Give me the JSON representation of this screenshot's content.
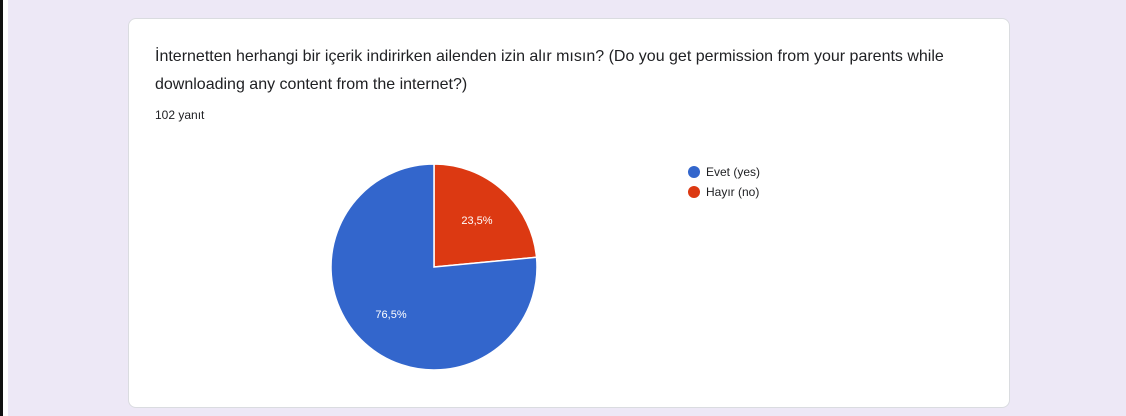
{
  "question": {
    "title": "İnternetten herhangi bir içerik indirirken ailenden izin alır mısın? (Do you get permission from your parents while downloading any content from the internet?)",
    "response_count": "102 yanıt"
  },
  "chart_data": {
    "type": "pie",
    "title": "İnternetten herhangi bir içerik indirirken ailenden izin alır mısın? (Do you get permission from your parents while downloading any content from the internet?)",
    "categories": [
      "Evet (yes)",
      "Hayır (no)"
    ],
    "values": [
      76.5,
      23.5
    ],
    "labels": [
      "76,5%",
      "23,5%"
    ],
    "colors": [
      "#3366cc",
      "#dc3912"
    ],
    "legend_position": "right"
  }
}
